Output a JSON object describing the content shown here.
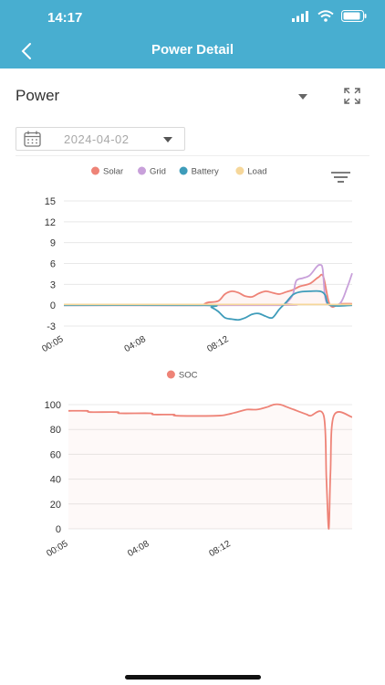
{
  "status_bar": {
    "time": "14:17"
  },
  "nav": {
    "title": "Power Detail",
    "back_icon": "chevron-left-icon"
  },
  "controls": {
    "power_select": "Power",
    "date": "2024-04-02",
    "expand_icon": "fullscreen-icon",
    "filter_icon": "filter-lines-icon",
    "calendar_icon": "calendar-icon"
  },
  "colors": {
    "header": "#48aed0",
    "solar": "#ee8377",
    "grid": "#c8a0da",
    "battery": "#3e9cba",
    "load": "#f6d79a",
    "soc": "#ee8377"
  },
  "chart_data": [
    {
      "type": "line",
      "legend_position": "top-center",
      "legend": [
        "Solar",
        "Grid",
        "Battery",
        "Load"
      ],
      "x_ticks": [
        "00:05",
        "04:08",
        "08:12"
      ],
      "y_ticks": [
        15,
        12,
        9,
        6,
        3,
        0,
        -3
      ],
      "ylim": [
        -3,
        15
      ],
      "xlim": [
        "00:05",
        "14:15"
      ],
      "grid": true,
      "series": [
        {
          "name": "Solar",
          "color": "#ee8377",
          "x": [
            "00:05",
            "06:45",
            "07:00",
            "07:10",
            "07:40",
            "08:00",
            "08:20",
            "08:40",
            "09:00",
            "09:20",
            "09:40",
            "10:00",
            "10:20",
            "10:40",
            "11:00",
            "11:20",
            "11:40",
            "12:10",
            "12:35",
            "12:50",
            "13:10",
            "13:40",
            "14:15"
          ],
          "y": [
            0,
            0,
            0.2,
            0.4,
            0.6,
            1.6,
            2.0,
            1.8,
            1.3,
            1.2,
            1.7,
            2.0,
            1.8,
            1.6,
            1.9,
            2.2,
            2.7,
            3.1,
            4.0,
            4.1,
            0,
            0.2,
            0.2
          ]
        },
        {
          "name": "Grid",
          "color": "#c8a0da",
          "x": [
            "00:05",
            "10:40",
            "11:00",
            "11:20",
            "11:30",
            "11:50",
            "12:10",
            "12:30",
            "12:40",
            "12:48",
            "12:56",
            "13:10",
            "13:40",
            "14:00",
            "14:15"
          ],
          "y": [
            0,
            0,
            0.3,
            1.5,
            3.5,
            3.9,
            4.3,
            5.5,
            5.8,
            5.2,
            1.0,
            0,
            0.3,
            2.5,
            4.6
          ]
        },
        {
          "name": "Battery",
          "color": "#3e9cba",
          "x": [
            "00:05",
            "07:00",
            "07:20",
            "07:40",
            "08:00",
            "08:20",
            "08:40",
            "09:00",
            "09:20",
            "09:40",
            "10:00",
            "10:20",
            "10:40",
            "11:00",
            "11:20",
            "11:40",
            "12:10",
            "12:40",
            "12:55",
            "13:10",
            "14:15"
          ],
          "y": [
            0,
            0,
            -0.3,
            -0.9,
            -1.8,
            -2.0,
            -2.1,
            -1.8,
            -1.3,
            -1.2,
            -1.6,
            -1.8,
            -0.6,
            0.4,
            1.5,
            1.9,
            2.0,
            2.0,
            1.5,
            0,
            0
          ]
        },
        {
          "name": "Load",
          "color": "#f6d79a",
          "x": [
            "00:05",
            "14:15"
          ],
          "y": [
            0.1,
            0.1
          ]
        }
      ]
    },
    {
      "type": "area",
      "legend_position": "top-center",
      "legend": [
        "SOC"
      ],
      "x_ticks": [
        "00:05",
        "04:08",
        "08:12"
      ],
      "y_ticks": [
        100,
        80,
        60,
        40,
        20,
        0
      ],
      "ylim": [
        0,
        100
      ],
      "xlim": [
        "00:05",
        "14:15"
      ],
      "grid": true,
      "series": [
        {
          "name": "SOC",
          "color": "#ee8377",
          "x": [
            "00:05",
            "01:00",
            "01:10",
            "02:30",
            "02:40",
            "04:10",
            "04:20",
            "05:20",
            "05:30",
            "07:30",
            "08:00",
            "08:30",
            "09:00",
            "09:30",
            "10:00",
            "10:20",
            "10:40",
            "11:00",
            "11:20",
            "11:40",
            "12:00",
            "12:10",
            "12:50",
            "12:58",
            "13:05",
            "13:10",
            "13:20",
            "14:15"
          ],
          "y": [
            95,
            95,
            94,
            94,
            93,
            93,
            92,
            92,
            91,
            91,
            92,
            94,
            96,
            96,
            98,
            100,
            100,
            98,
            96,
            94,
            92,
            91,
            91,
            40,
            0,
            45,
            91,
            90
          ]
        }
      ]
    }
  ]
}
